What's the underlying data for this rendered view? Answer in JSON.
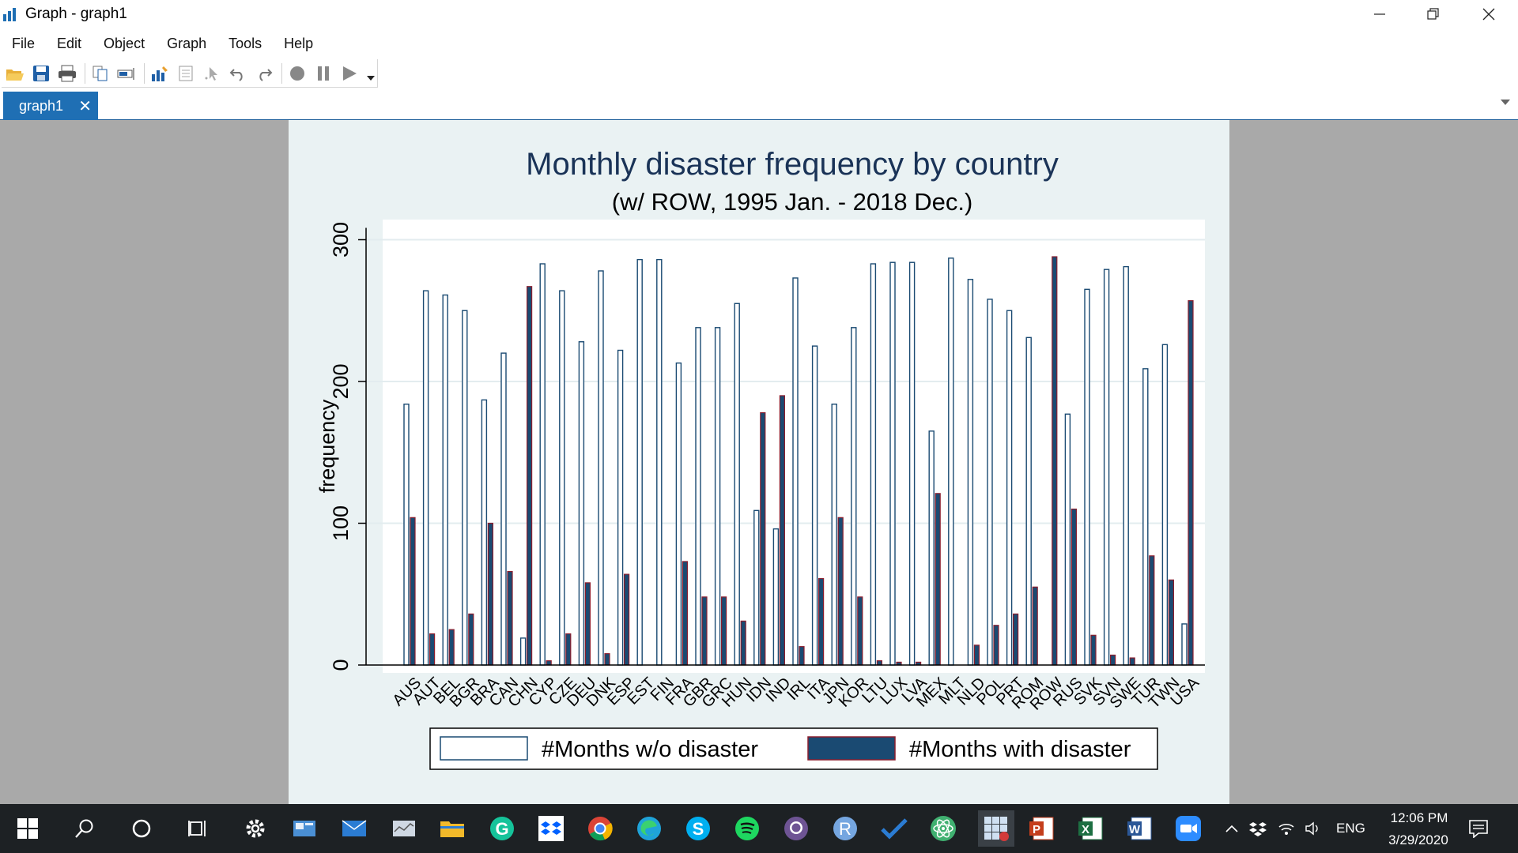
{
  "window": {
    "title": "Graph - graph1",
    "buttons": [
      "minimize",
      "restore",
      "close"
    ]
  },
  "menu": [
    "File",
    "Edit",
    "Object",
    "Graph",
    "Tools",
    "Help"
  ],
  "toolbar": [
    "open-icon",
    "save-icon",
    "print-icon",
    "copy-icon",
    "rename-icon",
    "graph-editor-icon",
    "data-editor-icon",
    "pointer-icon",
    "undo-icon",
    "redo-icon",
    "record-icon",
    "pause-icon",
    "play-icon",
    "dropdown-icon"
  ],
  "tabs": [
    {
      "label": "graph1",
      "close": "✕"
    }
  ],
  "chart_data": {
    "type": "bar",
    "title": "Monthly disaster frequency by country",
    "subtitle": "(w/ ROW, 1995 Jan. - 2018 Dec.)",
    "ylabel": "frequency",
    "xlabel": "",
    "ylim": [
      0,
      300
    ],
    "yticks": [
      0,
      100,
      200,
      300
    ],
    "grid": true,
    "legend_position": "bottom",
    "categories": [
      "AUS",
      "AUT",
      "BEL",
      "BGR",
      "BRA",
      "CAN",
      "CHN",
      "CYP",
      "CZE",
      "DEU",
      "DNK",
      "ESP",
      "EST",
      "FIN",
      "FRA",
      "GBR",
      "GRC",
      "HUN",
      "IDN",
      "IND",
      "IRL",
      "ITA",
      "JPN",
      "KOR",
      "LTU",
      "LUX",
      "LVA",
      "MEX",
      "MLT",
      "NLD",
      "POL",
      "PRT",
      "ROM",
      "ROW",
      "RUS",
      "SVK",
      "SVN",
      "SWE",
      "TUR",
      "TWN",
      "USA"
    ],
    "series": [
      {
        "name": "#Months w/o disaster",
        "color": "#ffffff",
        "values": [
          184,
          264,
          261,
          250,
          187,
          220,
          19,
          283,
          264,
          228,
          278,
          222,
          286,
          286,
          213,
          238,
          238,
          255,
          109,
          96,
          273,
          225,
          184,
          238,
          283,
          284,
          284,
          165,
          287,
          272,
          258,
          250,
          231,
          0,
          177,
          265,
          279,
          281,
          209,
          226,
          29
        ]
      },
      {
        "name": "#Months with disaster",
        "color": "#1a4a72",
        "values": [
          104,
          22,
          25,
          36,
          100,
          66,
          267,
          3,
          22,
          58,
          8,
          64,
          0,
          0,
          73,
          48,
          48,
          31,
          178,
          190,
          13,
          61,
          104,
          48,
          3,
          2,
          2,
          121,
          0,
          14,
          28,
          36,
          55,
          288,
          110,
          21,
          7,
          5,
          77,
          60,
          257
        ]
      }
    ]
  },
  "taskbar": {
    "icons": [
      "windows-start-icon",
      "search-icon",
      "cortana-icon",
      "task-view-icon",
      "settings-icon",
      "app-icon-1",
      "mail-icon",
      "app-icon-2",
      "file-explorer-icon",
      "grammarly-icon",
      "dropbox-icon",
      "chrome-icon",
      "edge-icon",
      "skype-icon",
      "spotify-icon",
      "github-icon",
      "r-icon",
      "todo-icon",
      "atom-icon",
      "stata-icon",
      "powerpoint-icon",
      "excel-icon",
      "word-icon",
      "zoom-icon"
    ],
    "time": "12:06 PM",
    "date": "3/29/2020",
    "lang": "ENG"
  }
}
